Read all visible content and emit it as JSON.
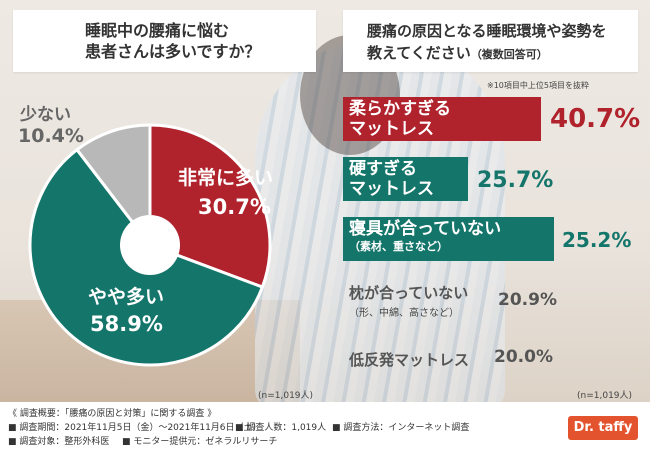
{
  "left_question": {
    "line1": "睡眠中の腰痛に悩む",
    "line2": "患者さんは多いですか？"
  },
  "right_question": {
    "line1": "腰痛の原因となる睡眠環境や姿勢を",
    "line2": "教えてください",
    "line2_note": "（複数回答可）"
  },
  "top_note": "※10項目中上位5項目を抜粋",
  "chart_data": [
    {
      "type": "pie",
      "categories": [
        "非常に多い",
        "やや多い",
        "少ない"
      ],
      "values": [
        30.7,
        58.9,
        10.4
      ],
      "value_labels": [
        "30.7%",
        "58.9%",
        "10.4%"
      ],
      "colors": [
        "#b0222c",
        "#14756a",
        "#b8b8b8"
      ],
      "sample_note": "(n=1,019人)"
    },
    {
      "type": "bar",
      "orientation": "horizontal",
      "categories": [
        "柔らかすぎるマットレス",
        "硬すぎるマットレス",
        "寝具が合っていない（素材、重さなど）",
        "枕が合っていない（形、中綿、高さなど）",
        "低反発マットレス"
      ],
      "values": [
        40.7,
        25.7,
        25.2,
        20.9,
        20.0
      ],
      "sample_note": "(n=1,019人)"
    }
  ],
  "bar_labels": {
    "b1a": "柔らかすぎる",
    "b1b": "マットレス",
    "b1v": "40.7%",
    "b2a": "硬すぎる",
    "b2b": "マットレス",
    "b2v": "25.7%",
    "b3a": "寝具が合っていない",
    "b3b": "（素材、重さなど）",
    "b3v": "25.2%",
    "b4a": "枕が合っていない",
    "b4b": "（形、中綿、高さなど）",
    "b4v": "20.9%",
    "b5a": "低反発マットレス",
    "b5v": "20.0%"
  },
  "footer": {
    "summary": "《 調査概要：「腰痛の原因と対策」に関する調査 》",
    "period": "■ 調査期間：2021年11月5日（金）〜2021年11月6日（土）",
    "count": "■ 調査人数：1,019人",
    "method": "■ 調査方法：インターネット調査",
    "target": "■ 調査対象：整形外科医",
    "provider": "■ モニター提供元：ゼネラルリサーチ",
    "logo": "Dr. taffy"
  }
}
